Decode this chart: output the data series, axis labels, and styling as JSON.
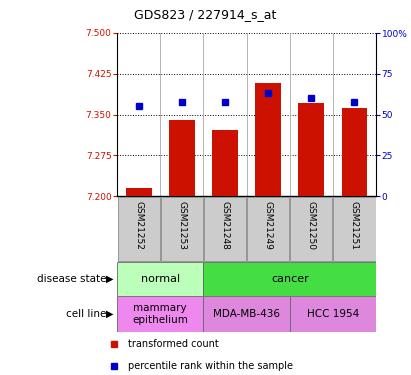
{
  "title": "GDS823 / 227914_s_at",
  "samples": [
    "GSM21252",
    "GSM21253",
    "GSM21248",
    "GSM21249",
    "GSM21250",
    "GSM21251"
  ],
  "transformed_counts": [
    7.215,
    7.34,
    7.322,
    7.408,
    7.372,
    7.362
  ],
  "percentile_ranks": [
    55,
    58,
    58,
    63,
    60,
    58
  ],
  "ylim_left": [
    7.2,
    7.5
  ],
  "ylim_right": [
    0,
    100
  ],
  "yticks_left": [
    7.2,
    7.275,
    7.35,
    7.425,
    7.5
  ],
  "yticks_right": [
    0,
    25,
    50,
    75,
    100
  ],
  "bar_color": "#cc1100",
  "dot_color": "#0000cc",
  "disease_state_groups": [
    {
      "label": "normal",
      "cols": [
        0,
        1
      ],
      "color": "#bbffbb"
    },
    {
      "label": "cancer",
      "cols": [
        2,
        3,
        4,
        5
      ],
      "color": "#44dd44"
    }
  ],
  "cell_line_groups": [
    {
      "label": "mammary\nepithelium",
      "cols": [
        0,
        1
      ],
      "color": "#ee88ee"
    },
    {
      "label": "MDA-MB-436",
      "cols": [
        2,
        3
      ],
      "color": "#dd88dd"
    },
    {
      "label": "HCC 1954",
      "cols": [
        4,
        5
      ],
      "color": "#dd88dd"
    }
  ],
  "left_label_disease": "disease state",
  "left_label_cell": "cell line",
  "legend_red": "transformed count",
  "legend_blue": "percentile rank within the sample"
}
